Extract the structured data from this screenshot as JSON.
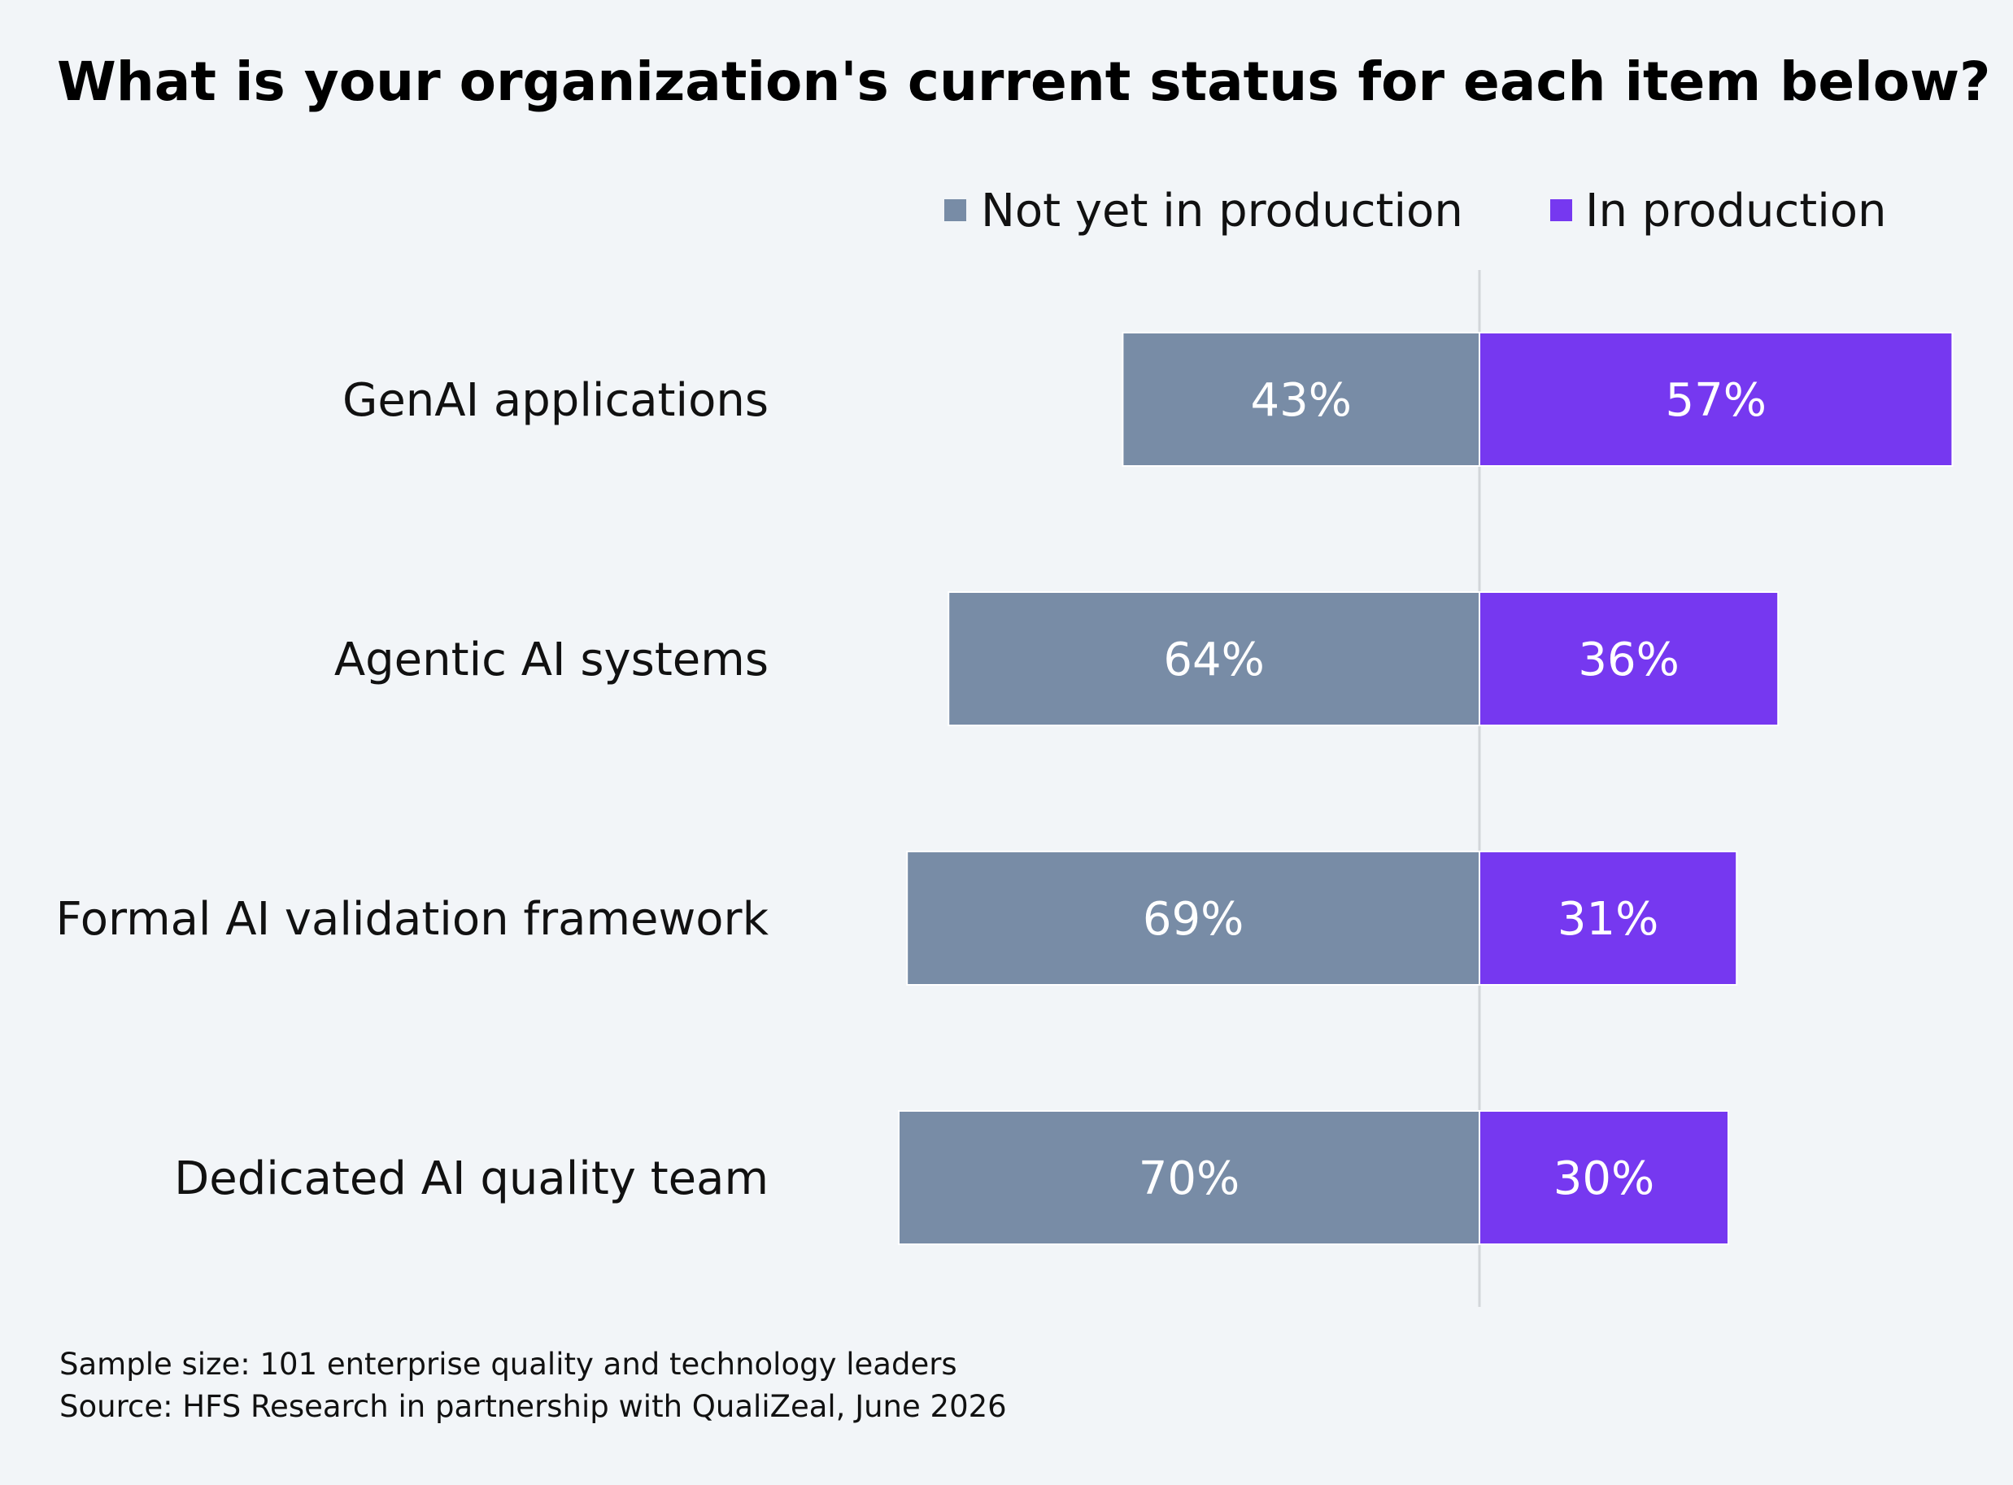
{
  "chart_data": {
    "type": "bar",
    "orientation": "horizontal-diverging",
    "title": "What is your organization's current status for each item below?",
    "categories": [
      "GenAI applications",
      "Agentic AI systems",
      "Formal AI validation framework",
      "Dedicated AI quality team"
    ],
    "series": [
      {
        "name": "Not yet in production",
        "color": "#788ca6",
        "direction": "left",
        "values": [
          43,
          64,
          69,
          70
        ],
        "labels": [
          "43%",
          "64%",
          "69%",
          "70%"
        ]
      },
      {
        "name": "In production",
        "color": "#7638f0",
        "direction": "right",
        "values": [
          57,
          36,
          31,
          30
        ],
        "labels": [
          "57%",
          "36%",
          "31%",
          "30%"
        ]
      }
    ],
    "unit": "%",
    "xlim": [
      -70,
      57
    ],
    "grid": false,
    "legend_position": "top-right",
    "baseline_color": "#d3d6da",
    "footnotes": [
      "Sample size: 101 enterprise quality and technology leaders",
      "Source: HFS Research in partnership with QualiZeal, June 2026"
    ]
  }
}
